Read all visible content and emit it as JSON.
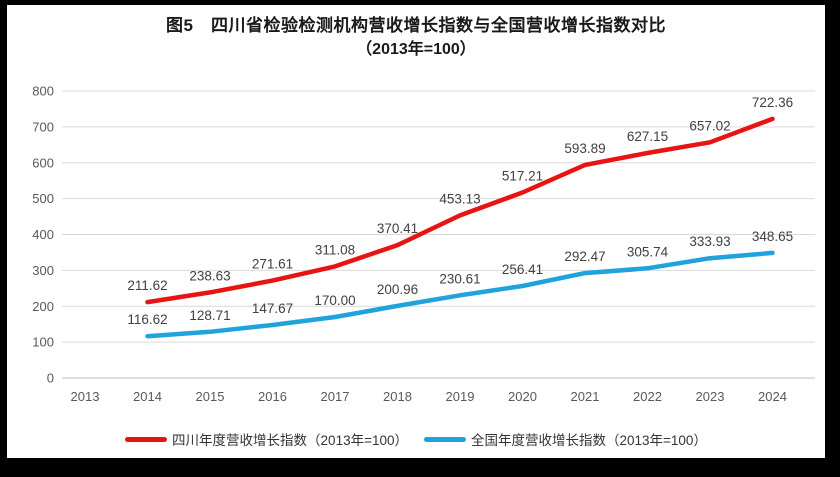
{
  "title": {
    "line1": "图5　四川省检验检测机构营收增长指数与全国营收增长指数对比",
    "line2": "（2013年=100）"
  },
  "colors": {
    "sichuan_line": "#e81414",
    "national_line": "#20a3dc",
    "gridline": "#d9d9d9",
    "axis_line": "#bfbfbf",
    "tick_text": "#595959",
    "label_text": "#404040",
    "frame_border": "#000000",
    "background": "#ffffff"
  },
  "chart_data": {
    "type": "line",
    "title": "图5　四川省检验检测机构营收增长指数与全国营收增长指数对比（2013年=100）",
    "categories": [
      "2013",
      "2014",
      "2015",
      "2016",
      "2017",
      "2018",
      "2019",
      "2020",
      "2021",
      "2022",
      "2023",
      "2024"
    ],
    "series": [
      {
        "name": "四川年度营收增长指数（2013年=100）",
        "color": "#e81414",
        "values": [
          null,
          211.62,
          238.63,
          271.61,
          311.08,
          370.41,
          453.13,
          517.21,
          593.89,
          627.15,
          657.02,
          722.36
        ]
      },
      {
        "name": "全国年度营收增长指数（2013年=100）",
        "color": "#20a3dc",
        "values": [
          null,
          116.62,
          128.71,
          147.67,
          170.0,
          200.96,
          230.61,
          256.41,
          292.47,
          305.74,
          333.93,
          348.65
        ]
      }
    ],
    "xlabel": "",
    "ylabel": "",
    "ylim": [
      0,
      800
    ],
    "ytick_step": 100,
    "grid": true,
    "legend_position": "bottom",
    "data_labels": true
  }
}
